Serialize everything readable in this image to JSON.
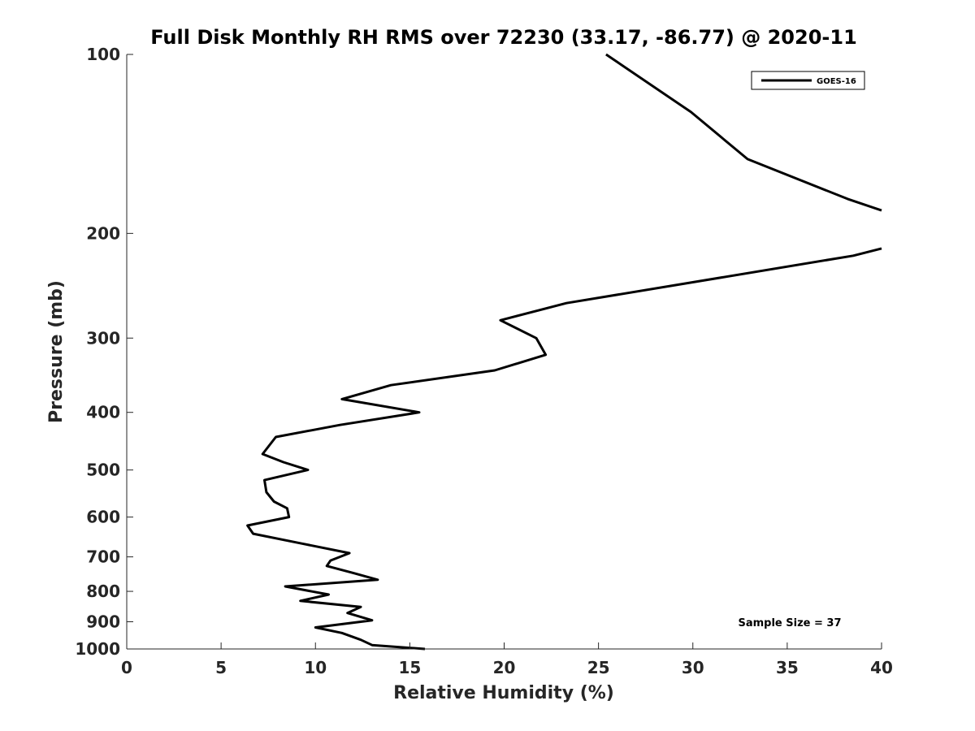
{
  "chart_data": {
    "type": "line",
    "title": "Full Disk Monthly RH RMS over 72230 (33.17, -86.77) @ 2020-11",
    "xlabel": "Relative Humidity (%)",
    "ylabel": "Pressure (mb)",
    "xlim": [
      0,
      40
    ],
    "ylim": [
      100,
      1000
    ],
    "y_scale": "log",
    "y_reversed": true,
    "grid": false,
    "legend_position": "top-right",
    "annotation": "Sample Size = 37",
    "x_ticks": [
      "0",
      "5",
      "10",
      "15",
      "20",
      "25",
      "30",
      "35",
      "40"
    ],
    "y_ticks": [
      "100",
      "200",
      "300",
      "400",
      "500",
      "600",
      "700",
      "800",
      "900",
      "1000"
    ],
    "x_tick_values": [
      0,
      5,
      10,
      15,
      20,
      25,
      30,
      35,
      40
    ],
    "y_tick_values": [
      100,
      200,
      300,
      400,
      500,
      600,
      700,
      800,
      900,
      1000
    ],
    "colors": {
      "line": "#000000",
      "axis": "#262626",
      "background": "#ffffff"
    },
    "series": [
      {
        "name": "GOES-16",
        "segments": [
          [
            {
              "x": 25.4,
              "y": 100
            },
            {
              "x": 29.9,
              "y": 125
            },
            {
              "x": 32.9,
              "y": 150
            },
            {
              "x": 38.2,
              "y": 175
            },
            {
              "x": 40.0,
              "y": 183
            }
          ],
          [
            {
              "x": 40.0,
              "y": 212
            },
            {
              "x": 38.5,
              "y": 218
            },
            {
              "x": 23.3,
              "y": 262
            },
            {
              "x": 19.8,
              "y": 280
            },
            {
              "x": 21.7,
              "y": 300
            },
            {
              "x": 22.2,
              "y": 320
            },
            {
              "x": 19.5,
              "y": 340
            },
            {
              "x": 14.0,
              "y": 360
            },
            {
              "x": 11.4,
              "y": 380
            },
            {
              "x": 15.5,
              "y": 400
            },
            {
              "x": 11.3,
              "y": 420
            },
            {
              "x": 7.9,
              "y": 440
            },
            {
              "x": 7.2,
              "y": 470
            },
            {
              "x": 8.3,
              "y": 485
            },
            {
              "x": 9.6,
              "y": 500
            },
            {
              "x": 7.3,
              "y": 520
            },
            {
              "x": 7.4,
              "y": 545
            },
            {
              "x": 7.8,
              "y": 565
            },
            {
              "x": 8.5,
              "y": 580
            },
            {
              "x": 8.6,
              "y": 600
            },
            {
              "x": 6.4,
              "y": 620
            },
            {
              "x": 6.7,
              "y": 640
            },
            {
              "x": 9.3,
              "y": 665
            },
            {
              "x": 11.8,
              "y": 690
            },
            {
              "x": 10.8,
              "y": 710
            },
            {
              "x": 10.6,
              "y": 725
            },
            {
              "x": 12.0,
              "y": 745
            },
            {
              "x": 13.3,
              "y": 765
            },
            {
              "x": 8.4,
              "y": 785
            },
            {
              "x": 10.7,
              "y": 810
            },
            {
              "x": 9.2,
              "y": 830
            },
            {
              "x": 12.4,
              "y": 850
            },
            {
              "x": 11.7,
              "y": 870
            },
            {
              "x": 13.0,
              "y": 895
            },
            {
              "x": 10.0,
              "y": 920
            },
            {
              "x": 11.4,
              "y": 940
            },
            {
              "x": 12.4,
              "y": 965
            },
            {
              "x": 13.0,
              "y": 985
            },
            {
              "x": 15.8,
              "y": 1000
            }
          ]
        ]
      }
    ]
  }
}
